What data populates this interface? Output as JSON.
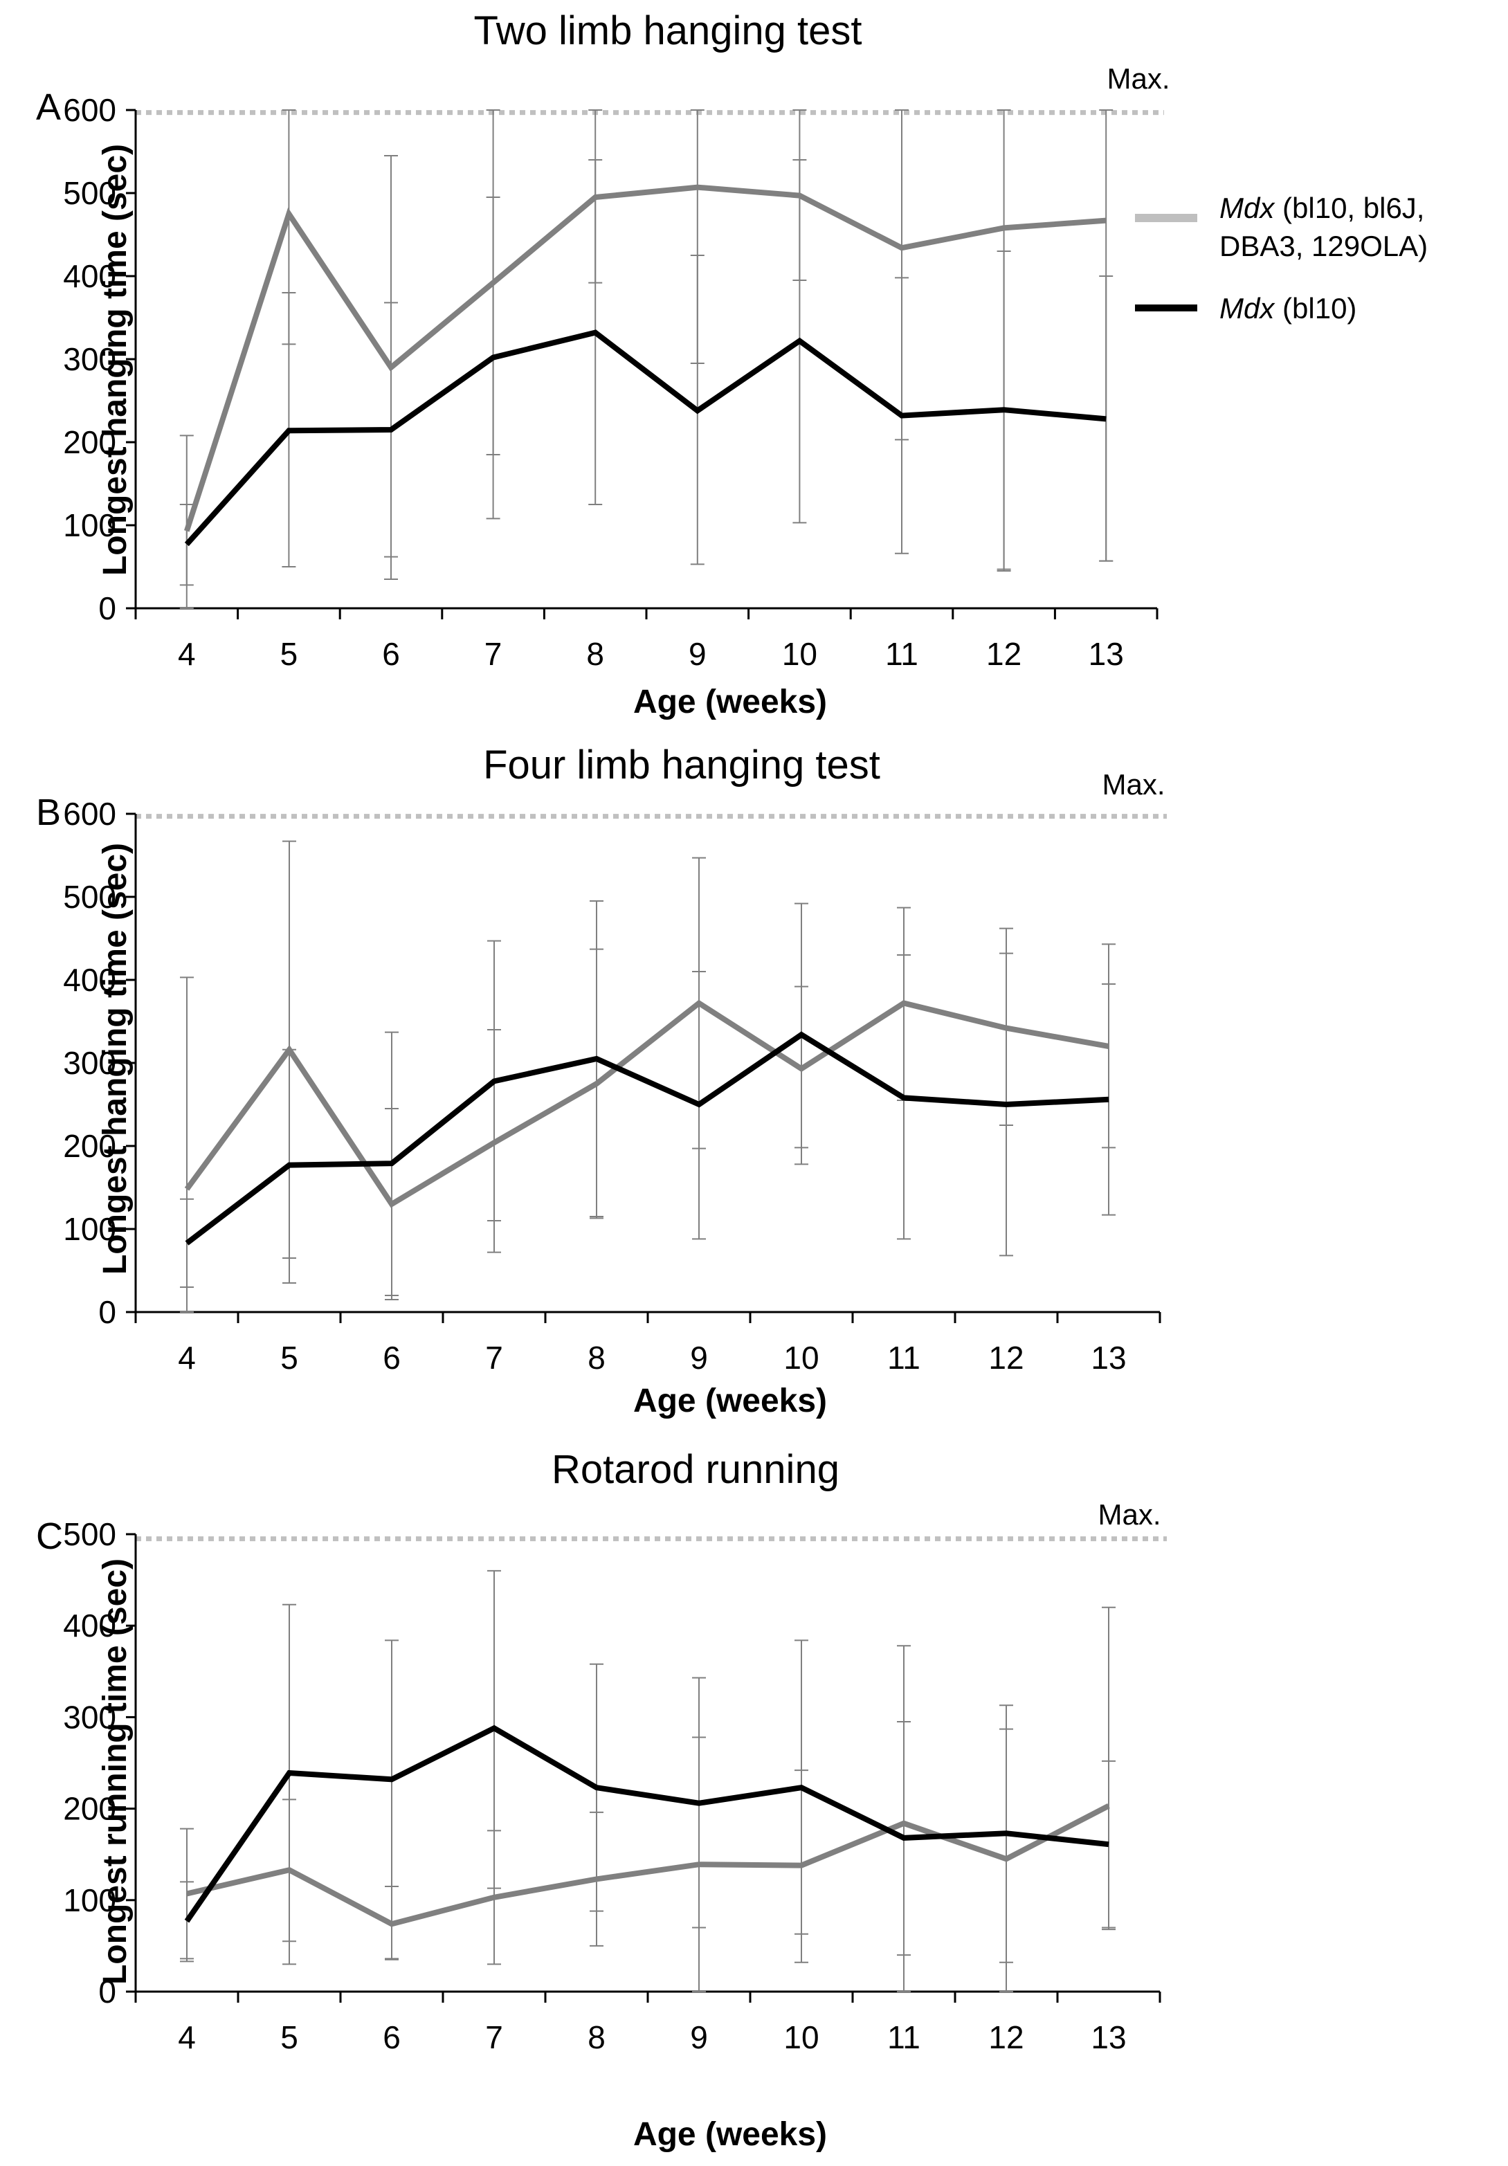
{
  "colors": {
    "gray_series": "#808080",
    "black_series": "#000000",
    "max_line": "#c0c0c0",
    "error_bar": "#7f7f7f",
    "axis": "#000000",
    "legend_gray": "#bfbfbf"
  },
  "legend": {
    "gray_italic": "Mdx",
    "gray_rest_line1": " (bl10, bl6J,",
    "gray_line2": "DBA3, 129OLA)",
    "black_italic": "Mdx",
    "black_rest": " (bl10)"
  },
  "chart_data": [
    {
      "type": "line",
      "panel": "A",
      "title": "Two limb hanging test",
      "xlabel": "Age (weeks)",
      "ylabel": "Longest hanging time (sec)",
      "categories": [
        "4",
        "5",
        "6",
        "7",
        "8",
        "9",
        "10",
        "11",
        "12",
        "13"
      ],
      "ylim": [
        0,
        600
      ],
      "yticks": [
        "0",
        "100",
        "200",
        "300",
        "400",
        "500",
        "600"
      ],
      "max_label": "Max.",
      "max_value": 597,
      "series": [
        {
          "name": "Mdx (bl10, bl6J, DBA3, 129OLA)",
          "color": "#808080",
          "values": [
            93,
            475,
            290,
            392,
            495,
            507,
            497,
            434,
            458,
            467
          ],
          "err": [
            [
              0,
              208
            ],
            [
              318,
              600
            ],
            [
              35,
              545
            ],
            [
              185,
              495
            ],
            [
              392,
              600
            ],
            [
              295,
              600
            ],
            [
              395,
              600
            ],
            [
              203,
              600
            ],
            [
              45,
              600
            ],
            [
              57,
              600
            ]
          ]
        },
        {
          "name": "Mdx (bl10)",
          "color": "#000000",
          "values": [
            77,
            214,
            215,
            302,
            332,
            238,
            322,
            232,
            239,
            228
          ],
          "err": [
            [
              28,
              125
            ],
            [
              50,
              380
            ],
            [
              62,
              368
            ],
            [
              108,
              600
            ],
            [
              125,
              540
            ],
            [
              53,
              425
            ],
            [
              103,
              540
            ],
            [
              66,
              398
            ],
            [
              47,
              430
            ],
            [
              57,
              400
            ]
          ]
        }
      ]
    },
    {
      "type": "line",
      "panel": "B",
      "title": "Four limb hanging test",
      "xlabel": "Age (weeks)",
      "ylabel": "Longest hanging time (sec)",
      "categories": [
        "4",
        "5",
        "6",
        "7",
        "8",
        "9",
        "10",
        "11",
        "12",
        "13"
      ],
      "ylim": [
        0,
        600
      ],
      "yticks": [
        "0",
        "100",
        "200",
        "300",
        "400",
        "500",
        "600"
      ],
      "max_label": "Max.",
      "max_value": 597,
      "series": [
        {
          "name": "Mdx (bl10, bl6J, DBA3, 129OLA)",
          "color": "#808080",
          "values": [
            148,
            316,
            130,
            204,
            275,
            372,
            293,
            372,
            342,
            320
          ],
          "err": [
            [
              0,
              403
            ],
            [
              65,
              567
            ],
            [
              20,
              337
            ],
            [
              72,
              447
            ],
            [
              115,
              495
            ],
            [
              197,
              547
            ],
            [
              178,
              492
            ],
            [
              255,
              487
            ],
            [
              225,
              462
            ],
            [
              198,
              443
            ]
          ]
        },
        {
          "name": "Mdx (bl10)",
          "color": "#000000",
          "values": [
            83,
            177,
            179,
            278,
            305,
            250,
            334,
            258,
            250,
            256
          ],
          "err": [
            [
              30,
              136
            ],
            [
              35,
              316
            ],
            [
              15,
              245
            ],
            [
              110,
              340
            ],
            [
              113,
              437
            ],
            [
              88,
              410
            ],
            [
              198,
              392
            ],
            [
              88,
              430
            ],
            [
              68,
              432
            ],
            [
              117,
              395
            ]
          ]
        }
      ]
    },
    {
      "type": "line",
      "panel": "C",
      "title": "Rotarod running",
      "xlabel": "Age (weeks)",
      "ylabel": "Longest running time (sec)",
      "categories": [
        "4",
        "5",
        "6",
        "7",
        "8",
        "9",
        "10",
        "11",
        "12",
        "13"
      ],
      "ylim": [
        0,
        500
      ],
      "yticks": [
        "0",
        "100",
        "200",
        "300",
        "400",
        "500"
      ],
      "max_label": "Max.",
      "max_value": 495,
      "series": [
        {
          "name": "Mdx (bl10, bl6J, DBA3, 129OLA)",
          "color": "#808080",
          "values": [
            107,
            133,
            74,
            103,
            123,
            139,
            138,
            184,
            145,
            203
          ],
          "err": [
            [
              36,
              178
            ],
            [
              55,
              210
            ],
            [
              36,
              115
            ],
            [
              30,
              176
            ],
            [
              50,
              196
            ],
            [
              0,
              278
            ],
            [
              63,
              242
            ],
            [
              40,
              295
            ],
            [
              0,
              287
            ],
            [
              70,
              252
            ]
          ]
        },
        {
          "name": "Mdx (bl10)",
          "color": "#000000",
          "values": [
            77,
            239,
            232,
            288,
            223,
            206,
            223,
            168,
            173,
            161
          ],
          "err": [
            [
              33,
              120
            ],
            [
              30,
              423
            ],
            [
              35,
              384
            ],
            [
              113,
              460
            ],
            [
              88,
              358
            ],
            [
              70,
              343
            ],
            [
              32,
              384
            ],
            [
              0,
              378
            ],
            [
              32,
              313
            ],
            [
              68,
              420
            ]
          ]
        }
      ]
    }
  ]
}
